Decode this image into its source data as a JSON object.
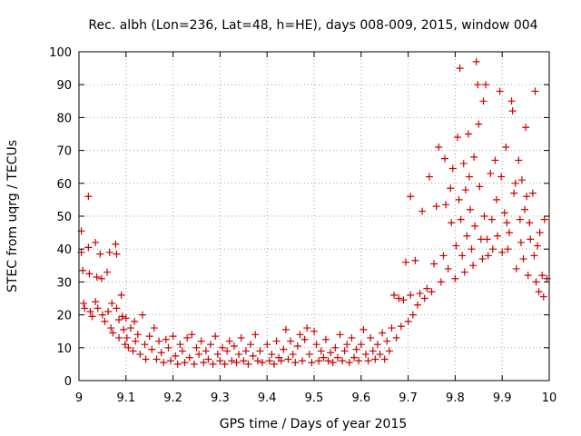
{
  "chart_data": {
    "type": "scatter",
    "title": "Rec. albh (Lon=236, Lat=48, h=HE), days 008-009, 2015, window 004",
    "xlabel": "GPS time / Days of year 2015",
    "ylabel": "STEC from uqrg / TECUs",
    "xlim": [
      9,
      10
    ],
    "ylim": [
      0,
      100
    ],
    "xticks": [
      9,
      9.1,
      9.2,
      9.3,
      9.4,
      9.5,
      9.6,
      9.7,
      9.8,
      9.9,
      10
    ],
    "xtick_labels": [
      "9",
      "9.1",
      "9.2",
      "9.3",
      "9.4",
      "9.5",
      "9.6",
      "9.7",
      "9.8",
      "9.9",
      "10"
    ],
    "yticks": [
      0,
      10,
      20,
      30,
      40,
      50,
      60,
      70,
      80,
      90,
      100
    ],
    "ytick_labels": [
      "0",
      "10",
      "20",
      "30",
      "40",
      "50",
      "60",
      "70",
      "80",
      "90",
      "100"
    ],
    "grid": true,
    "marker": "+",
    "color": "#cc0000",
    "series": [
      {
        "name": "STEC",
        "points": [
          [
            9.005,
            45.5
          ],
          [
            9.005,
            39
          ],
          [
            9.008,
            33.5
          ],
          [
            9.01,
            23.5
          ],
          [
            9.012,
            22
          ],
          [
            9.02,
            56
          ],
          [
            9.02,
            40.5
          ],
          [
            9.022,
            32.5
          ],
          [
            9.024,
            21
          ],
          [
            9.028,
            19.5
          ],
          [
            9.035,
            42
          ],
          [
            9.035,
            24
          ],
          [
            9.038,
            31.5
          ],
          [
            9.04,
            22
          ],
          [
            9.045,
            38.5
          ],
          [
            9.048,
            31
          ],
          [
            9.05,
            20
          ],
          [
            9.055,
            18
          ],
          [
            9.06,
            33
          ],
          [
            9.062,
            21
          ],
          [
            9.065,
            39
          ],
          [
            9.068,
            16
          ],
          [
            9.07,
            23.5
          ],
          [
            9.072,
            14.5
          ],
          [
            9.078,
            41.5
          ],
          [
            9.08,
            38.5
          ],
          [
            9.08,
            22
          ],
          [
            9.085,
            18.5
          ],
          [
            9.085,
            13
          ],
          [
            9.09,
            26
          ],
          [
            9.092,
            19.5
          ],
          [
            9.095,
            15.5
          ],
          [
            9.098,
            11
          ],
          [
            9.1,
            19
          ],
          [
            9.102,
            13
          ],
          [
            9.105,
            10
          ],
          [
            9.11,
            16
          ],
          [
            9.115,
            9
          ],
          [
            9.118,
            18
          ],
          [
            9.12,
            12
          ],
          [
            9.125,
            14
          ],
          [
            9.13,
            8
          ],
          [
            9.135,
            20
          ],
          [
            9.14,
            11
          ],
          [
            9.142,
            6.5
          ],
          [
            9.15,
            13.5
          ],
          [
            9.155,
            9.5
          ],
          [
            9.16,
            16
          ],
          [
            9.165,
            6.5
          ],
          [
            9.17,
            12
          ],
          [
            9.175,
            8.5
          ],
          [
            9.18,
            5.5
          ],
          [
            9.185,
            12.5
          ],
          [
            9.19,
            10
          ],
          [
            9.195,
            6
          ],
          [
            9.2,
            13.5
          ],
          [
            9.205,
            7.5
          ],
          [
            9.21,
            5
          ],
          [
            9.215,
            11
          ],
          [
            9.22,
            9
          ],
          [
            9.225,
            5.5
          ],
          [
            9.23,
            13
          ],
          [
            9.235,
            7
          ],
          [
            9.24,
            14
          ],
          [
            9.245,
            5
          ],
          [
            9.25,
            10
          ],
          [
            9.255,
            8
          ],
          [
            9.26,
            12
          ],
          [
            9.265,
            5.5
          ],
          [
            9.27,
            9
          ],
          [
            9.275,
            6.5
          ],
          [
            9.28,
            11
          ],
          [
            9.285,
            5
          ],
          [
            9.29,
            13.5
          ],
          [
            9.295,
            8
          ],
          [
            9.3,
            6
          ],
          [
            9.305,
            10
          ],
          [
            9.31,
            5
          ],
          [
            9.315,
            9
          ],
          [
            9.32,
            12
          ],
          [
            9.325,
            6
          ],
          [
            9.33,
            10.5
          ],
          [
            9.335,
            5.5
          ],
          [
            9.34,
            8
          ],
          [
            9.345,
            13
          ],
          [
            9.35,
            6
          ],
          [
            9.355,
            9
          ],
          [
            9.36,
            5
          ],
          [
            9.365,
            11
          ],
          [
            9.37,
            7.5
          ],
          [
            9.375,
            14
          ],
          [
            9.38,
            6
          ],
          [
            9.385,
            9
          ],
          [
            9.39,
            5.5
          ],
          [
            9.4,
            11
          ],
          [
            9.405,
            6
          ],
          [
            9.41,
            8
          ],
          [
            9.415,
            5
          ],
          [
            9.42,
            12
          ],
          [
            9.425,
            7
          ],
          [
            9.43,
            6
          ],
          [
            9.435,
            9.5
          ],
          [
            9.44,
            15.5
          ],
          [
            9.445,
            6.5
          ],
          [
            9.45,
            12
          ],
          [
            9.455,
            8
          ],
          [
            9.46,
            5.5
          ],
          [
            9.465,
            10.5
          ],
          [
            9.47,
            14
          ],
          [
            9.475,
            6
          ],
          [
            9.48,
            12.5
          ],
          [
            9.485,
            16
          ],
          [
            9.49,
            8
          ],
          [
            9.495,
            5.5
          ],
          [
            9.5,
            15
          ],
          [
            9.505,
            11
          ],
          [
            9.51,
            6
          ],
          [
            9.515,
            9
          ],
          [
            9.52,
            7
          ],
          [
            9.525,
            12.5
          ],
          [
            9.53,
            6
          ],
          [
            9.535,
            8.5
          ],
          [
            9.54,
            5.5
          ],
          [
            9.545,
            10
          ],
          [
            9.55,
            7
          ],
          [
            9.555,
            14
          ],
          [
            9.56,
            6
          ],
          [
            9.565,
            9
          ],
          [
            9.57,
            11
          ],
          [
            9.575,
            5.5
          ],
          [
            9.58,
            13
          ],
          [
            9.585,
            7
          ],
          [
            9.59,
            9.5
          ],
          [
            9.595,
            6
          ],
          [
            9.6,
            11
          ],
          [
            9.605,
            15.5
          ],
          [
            9.61,
            8
          ],
          [
            9.615,
            6
          ],
          [
            9.62,
            13
          ],
          [
            9.625,
            9
          ],
          [
            9.63,
            6.5
          ],
          [
            9.635,
            11
          ],
          [
            9.64,
            8
          ],
          [
            9.645,
            14.5
          ],
          [
            9.65,
            6.5
          ],
          [
            9.655,
            12
          ],
          [
            9.66,
            9
          ],
          [
            9.665,
            16
          ],
          [
            9.67,
            26
          ],
          [
            9.675,
            13
          ],
          [
            9.68,
            25
          ],
          [
            9.685,
            16.5
          ],
          [
            9.69,
            24.5
          ],
          [
            9.695,
            36
          ],
          [
            9.7,
            18
          ],
          [
            9.705,
            56
          ],
          [
            9.705,
            26
          ],
          [
            9.71,
            20
          ],
          [
            9.715,
            36.5
          ],
          [
            9.72,
            23
          ],
          [
            9.725,
            26.5
          ],
          [
            9.73,
            51.5
          ],
          [
            9.735,
            25
          ],
          [
            9.74,
            28
          ],
          [
            9.745,
            62
          ],
          [
            9.75,
            27
          ],
          [
            9.755,
            35.5
          ],
          [
            9.76,
            53
          ],
          [
            9.765,
            71
          ],
          [
            9.77,
            30
          ],
          [
            9.775,
            38
          ],
          [
            9.778,
            67.5
          ],
          [
            9.78,
            53.5
          ],
          [
            9.785,
            34
          ],
          [
            9.79,
            58.5
          ],
          [
            9.792,
            48
          ],
          [
            9.795,
            64.5
          ],
          [
            9.8,
            31
          ],
          [
            9.802,
            41
          ],
          [
            9.805,
            74
          ],
          [
            9.808,
            55
          ],
          [
            9.81,
            95
          ],
          [
            9.812,
            49
          ],
          [
            9.815,
            38
          ],
          [
            9.818,
            66
          ],
          [
            9.82,
            33
          ],
          [
            9.822,
            58
          ],
          [
            9.825,
            44
          ],
          [
            9.828,
            75
          ],
          [
            9.83,
            62
          ],
          [
            9.832,
            52
          ],
          [
            9.835,
            40
          ],
          [
            9.838,
            35
          ],
          [
            9.84,
            68
          ],
          [
            9.842,
            47
          ],
          [
            9.845,
            97
          ],
          [
            9.848,
            90
          ],
          [
            9.85,
            78
          ],
          [
            9.852,
            59
          ],
          [
            9.855,
            43
          ],
          [
            9.858,
            37
          ],
          [
            9.86,
            85
          ],
          [
            9.862,
            50
          ],
          [
            9.865,
            90
          ],
          [
            9.868,
            43
          ],
          [
            9.87,
            38
          ],
          [
            9.875,
            63
          ],
          [
            9.878,
            49
          ],
          [
            9.88,
            40
          ],
          [
            9.885,
            67
          ],
          [
            9.888,
            55
          ],
          [
            9.89,
            44
          ],
          [
            9.895,
            88
          ],
          [
            9.898,
            62
          ],
          [
            9.9,
            39
          ],
          [
            9.905,
            51
          ],
          [
            9.908,
            71
          ],
          [
            9.91,
            48
          ],
          [
            9.912,
            40
          ],
          [
            9.915,
            45
          ],
          [
            9.92,
            85
          ],
          [
            9.922,
            82
          ],
          [
            9.925,
            57
          ],
          [
            9.928,
            60
          ],
          [
            9.93,
            34
          ],
          [
            9.935,
            67
          ],
          [
            9.938,
            49
          ],
          [
            9.94,
            42
          ],
          [
            9.942,
            61
          ],
          [
            9.945,
            37
          ],
          [
            9.948,
            52
          ],
          [
            9.95,
            77
          ],
          [
            9.952,
            56
          ],
          [
            9.955,
            32
          ],
          [
            9.958,
            48
          ],
          [
            9.96,
            43
          ],
          [
            9.965,
            57
          ],
          [
            9.968,
            38
          ],
          [
            9.97,
            88
          ],
          [
            9.972,
            30
          ],
          [
            9.975,
            41
          ],
          [
            9.978,
            27
          ],
          [
            9.98,
            45
          ],
          [
            9.985,
            32
          ],
          [
            9.988,
            25.5
          ],
          [
            9.99,
            49
          ],
          [
            9.995,
            31
          ]
        ]
      }
    ]
  }
}
